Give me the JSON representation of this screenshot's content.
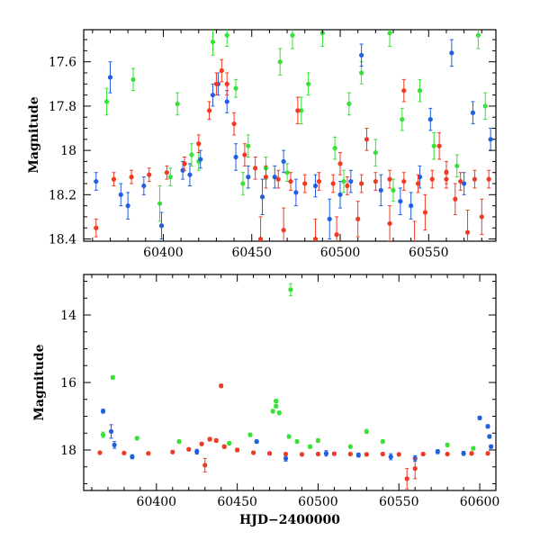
{
  "chart_data": [
    {
      "type": "scatter",
      "title": "",
      "xlabel": "",
      "ylabel": "Magnitude",
      "xlim": [
        60355,
        60588
      ],
      "ylim": [
        18.41,
        17.455
      ],
      "y_inverted": true,
      "xticks_major": [
        60400,
        60450,
        60500,
        60550
      ],
      "xtick_labels": [
        "60400",
        "60450",
        "60500",
        "60550"
      ],
      "yticks_major": [
        17.6,
        17.8,
        18.0,
        18.2,
        18.4
      ],
      "ytick_labels": [
        "17.6",
        "17.8",
        "18",
        "18.2",
        "18.4"
      ],
      "series": [
        {
          "color": "#38e038",
          "error_bars": true,
          "points": [
            [
              60368,
              17.78,
              0.06
            ],
            [
              60383,
              17.68,
              0.05
            ],
            [
              60398,
              18.24,
              0.08
            ],
            [
              60408,
              17.79,
              0.05
            ],
            [
              60416,
              18.02,
              0.05
            ],
            [
              60428,
              17.51,
              0.06
            ],
            [
              60436,
              17.48,
              0.05
            ],
            [
              60441,
              17.72,
              0.04
            ],
            [
              60448,
              17.98,
              0.05
            ],
            [
              60458,
              18.08,
              0.05
            ],
            [
              60466,
              17.6,
              0.06
            ],
            [
              60473,
              17.48,
              0.06
            ],
            [
              60478,
              17.82,
              0.06
            ],
            [
              60482,
              17.7,
              0.05
            ],
            [
              60490,
              17.47,
              0.06
            ],
            [
              60497,
              17.99,
              0.05
            ],
            [
              60505,
              17.79,
              0.05
            ],
            [
              60512,
              17.65,
              0.05
            ],
            [
              60520,
              18.01,
              0.06
            ],
            [
              60528,
              17.47,
              0.06
            ],
            [
              60535,
              17.86,
              0.05
            ],
            [
              60545,
              17.73,
              0.05
            ],
            [
              60553,
              17.98,
              0.06
            ],
            [
              60566,
              18.07,
              0.05
            ],
            [
              60578,
              17.48,
              0.06
            ],
            [
              60582,
              17.8,
              0.06
            ],
            [
              60404,
              18.12,
              0.04
            ],
            [
              60420,
              18.05,
              0.04
            ],
            [
              60445,
              18.15,
              0.05
            ],
            [
              60470,
              18.1,
              0.04
            ],
            [
              60502,
              18.14,
              0.05
            ],
            [
              60530,
              18.18,
              0.05
            ]
          ]
        },
        {
          "color": "#1f5fe0",
          "error_bars": true,
          "points": [
            [
              60370,
              17.67,
              0.07
            ],
            [
              60362,
              18.14,
              0.04
            ],
            [
              60376,
              18.2,
              0.05
            ],
            [
              60389,
              18.16,
              0.04
            ],
            [
              60399,
              18.34,
              0.06
            ],
            [
              60411,
              18.09,
              0.04
            ],
            [
              60421,
              18.04,
              0.04
            ],
            [
              60428,
              17.75,
              0.05
            ],
            [
              60431,
              17.7,
              0.05
            ],
            [
              60436,
              17.78,
              0.05
            ],
            [
              60441,
              18.03,
              0.06
            ],
            [
              60448,
              18.12,
              0.05
            ],
            [
              60456,
              18.21,
              0.08
            ],
            [
              60463,
              18.12,
              0.05
            ],
            [
              60475,
              18.19,
              0.06
            ],
            [
              60486,
              18.16,
              0.05
            ],
            [
              60494,
              18.31,
              0.09
            ],
            [
              60506,
              18.14,
              0.05
            ],
            [
              60512,
              17.57,
              0.05
            ],
            [
              60523,
              18.18,
              0.07
            ],
            [
              60534,
              18.23,
              0.06
            ],
            [
              60545,
              18.12,
              0.05
            ],
            [
              60551,
              17.86,
              0.05
            ],
            [
              60563,
              17.56,
              0.06
            ],
            [
              60575,
              17.83,
              0.05
            ],
            [
              60585,
              17.95,
              0.05
            ],
            [
              60380,
              18.25,
              0.06
            ],
            [
              60415,
              18.11,
              0.05
            ],
            [
              60468,
              18.05,
              0.05
            ],
            [
              60500,
              18.2,
              0.06
            ],
            [
              60540,
              18.25,
              0.06
            ],
            [
              60570,
              18.15,
              0.05
            ]
          ]
        },
        {
          "color": "#f03a24",
          "error_bars": true,
          "points": [
            [
              60362,
              18.35,
              0.04
            ],
            [
              60372,
              18.13,
              0.03
            ],
            [
              60382,
              18.12,
              0.03
            ],
            [
              60392,
              18.11,
              0.03
            ],
            [
              60402,
              18.1,
              0.03
            ],
            [
              60412,
              18.06,
              0.03
            ],
            [
              60420,
              17.97,
              0.04
            ],
            [
              60426,
              17.82,
              0.04
            ],
            [
              60430,
              17.7,
              0.05
            ],
            [
              60433,
              17.64,
              0.05
            ],
            [
              60436,
              17.7,
              0.05
            ],
            [
              60440,
              17.88,
              0.05
            ],
            [
              60446,
              18.02,
              0.05
            ],
            [
              60452,
              18.08,
              0.05
            ],
            [
              60458,
              18.12,
              0.05
            ],
            [
              60465,
              18.13,
              0.04
            ],
            [
              60472,
              18.14,
              0.04
            ],
            [
              60480,
              18.15,
              0.04
            ],
            [
              60488,
              18.14,
              0.04
            ],
            [
              60496,
              18.15,
              0.04
            ],
            [
              60504,
              18.16,
              0.04
            ],
            [
              60512,
              18.15,
              0.04
            ],
            [
              60520,
              18.14,
              0.04
            ],
            [
              60528,
              18.13,
              0.04
            ],
            [
              60536,
              18.14,
              0.04
            ],
            [
              60544,
              18.15,
              0.04
            ],
            [
              60552,
              18.13,
              0.04
            ],
            [
              60560,
              18.13,
              0.04
            ],
            [
              60568,
              18.14,
              0.04
            ],
            [
              60576,
              18.13,
              0.04
            ],
            [
              60584,
              18.13,
              0.04
            ],
            [
              60455,
              18.4,
              0.1
            ],
            [
              60468,
              18.36,
              0.1
            ],
            [
              60476,
              17.82,
              0.06
            ],
            [
              60486,
              18.4,
              0.09
            ],
            [
              60498,
              18.38,
              0.08
            ],
            [
              60510,
              18.31,
              0.08
            ],
            [
              60528,
              18.33,
              0.08
            ],
            [
              60536,
              17.73,
              0.05
            ],
            [
              60542,
              18.42,
              0.1
            ],
            [
              60556,
              17.98,
              0.06
            ],
            [
              60560,
              18.1,
              0.05
            ],
            [
              60572,
              18.37,
              0.1
            ],
            [
              60580,
              18.3,
              0.08
            ],
            [
              60500,
              18.06,
              0.05
            ],
            [
              60515,
              17.95,
              0.05
            ],
            [
              60548,
              18.28,
              0.08
            ],
            [
              60565,
              18.22,
              0.07
            ]
          ]
        }
      ]
    },
    {
      "type": "scatter",
      "title": "",
      "xlabel": "HJD−2400000",
      "ylabel": "Magnitude",
      "xlim": [
        60355,
        60610
      ],
      "ylim": [
        19.2,
        12.8
      ],
      "y_inverted": true,
      "xticks_major": [
        60400,
        60450,
        60500,
        60550,
        60600
      ],
      "xtick_labels": [
        "60400",
        "60450",
        "60500",
        "60550",
        "60600"
      ],
      "yticks_major": [
        14,
        16,
        18
      ],
      "ytick_labels": [
        "14",
        "16",
        "18"
      ],
      "series": [
        {
          "color": "#38e038",
          "error_bars": true,
          "points": [
            [
              60483,
              13.25,
              0.18
            ],
            [
              60373,
              15.85,
              0.05
            ],
            [
              60474,
              16.55,
              0.05
            ],
            [
              60474,
              16.7,
              0.05
            ],
            [
              60472,
              16.85,
              0.05
            ],
            [
              60476,
              16.9,
              0.05
            ],
            [
              60482,
              17.6,
              0.05
            ],
            [
              60487,
              17.75,
              0.05
            ],
            [
              60367,
              17.55,
              0.08
            ],
            [
              60388,
              17.65,
              0.05
            ],
            [
              60414,
              17.75,
              0.05
            ],
            [
              60458,
              17.55,
              0.05
            ],
            [
              60500,
              17.72,
              0.05
            ],
            [
              60530,
              17.45,
              0.06
            ],
            [
              60540,
              17.75,
              0.05
            ],
            [
              60580,
              17.85,
              0.05
            ],
            [
              60596,
              17.95,
              0.05
            ],
            [
              60445,
              17.8,
              0.05
            ],
            [
              60495,
              17.9,
              0.05
            ],
            [
              60520,
              17.9,
              0.05
            ]
          ]
        },
        {
          "color": "#1f5fe0",
          "error_bars": true,
          "points": [
            [
              60367,
              16.85,
              0.06
            ],
            [
              60372,
              17.45,
              0.2
            ],
            [
              60374,
              17.85,
              0.1
            ],
            [
              60600,
              17.05,
              0.05
            ],
            [
              60605,
              17.3,
              0.05
            ],
            [
              60606,
              17.6,
              0.05
            ],
            [
              60607,
              17.9,
              0.05
            ],
            [
              60425,
              18.05,
              0.07
            ],
            [
              60462,
              17.75,
              0.05
            ],
            [
              60505,
              18.1,
              0.08
            ],
            [
              60545,
              18.2,
              0.09
            ],
            [
              60574,
              18.05,
              0.06
            ],
            [
              60385,
              18.2,
              0.06
            ],
            [
              60480,
              18.25,
              0.08
            ],
            [
              60525,
              18.15,
              0.06
            ],
            [
              60560,
              18.25,
              0.08
            ],
            [
              60590,
              18.1,
              0.06
            ]
          ]
        },
        {
          "color": "#f03a24",
          "error_bars": true,
          "points": [
            [
              60440,
              16.1,
              0.05
            ],
            [
              60430,
              18.45,
              0.2
            ],
            [
              60560,
              18.55,
              0.3
            ],
            [
              60555,
              18.85,
              0.3
            ],
            [
              60365,
              18.08,
              0.03
            ],
            [
              60380,
              18.09,
              0.03
            ],
            [
              60395,
              18.1,
              0.03
            ],
            [
              60410,
              18.06,
              0.03
            ],
            [
              60420,
              17.98,
              0.04
            ],
            [
              60428,
              17.82,
              0.04
            ],
            [
              60433,
              17.68,
              0.05
            ],
            [
              60437,
              17.72,
              0.05
            ],
            [
              60442,
              17.9,
              0.05
            ],
            [
              60450,
              18.0,
              0.05
            ],
            [
              60460,
              18.08,
              0.04
            ],
            [
              60470,
              18.1,
              0.04
            ],
            [
              60480,
              18.12,
              0.04
            ],
            [
              60490,
              18.13,
              0.04
            ],
            [
              60500,
              18.12,
              0.04
            ],
            [
              60510,
              18.11,
              0.04
            ],
            [
              60520,
              18.12,
              0.04
            ],
            [
              60530,
              18.13,
              0.04
            ],
            [
              60540,
              18.12,
              0.04
            ],
            [
              60550,
              18.13,
              0.04
            ],
            [
              60565,
              18.12,
              0.04
            ],
            [
              60580,
              18.12,
              0.04
            ],
            [
              60595,
              18.1,
              0.04
            ],
            [
              60605,
              18.1,
              0.04
            ]
          ]
        }
      ]
    }
  ]
}
